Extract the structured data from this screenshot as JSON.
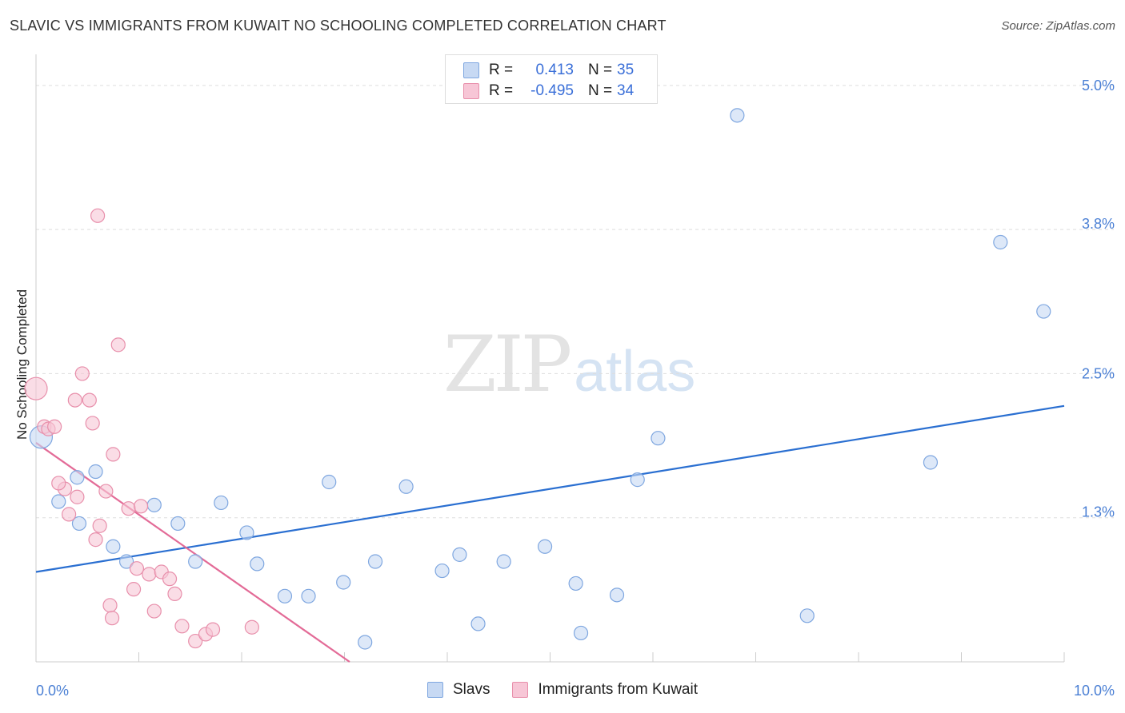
{
  "header": {
    "title": "SLAVIC VS IMMIGRANTS FROM KUWAIT NO SCHOOLING COMPLETED CORRELATION CHART",
    "source": "Source: ZipAtlas.com"
  },
  "watermark": {
    "zip": "ZIP",
    "atlas": "atlas"
  },
  "legend_top": {
    "rows": [
      {
        "r_label": "R =",
        "r_value": "0.413",
        "n_label": "N =",
        "n_value": "35"
      },
      {
        "r_label": "R =",
        "r_value": "-0.495",
        "n_label": "N =",
        "n_value": "34"
      }
    ]
  },
  "colors": {
    "blue_fill": "#c7d9f3",
    "blue_stroke": "#7fa7e0",
    "blue_line": "#2a6fd1",
    "pink_fill": "#f7c6d6",
    "pink_stroke": "#e88fab",
    "pink_line": "#e36b97",
    "tick_label": "#4a7fd4",
    "grid": "#dddddd"
  },
  "chart_data": {
    "type": "scatter",
    "title": "SLAVIC VS IMMIGRANTS FROM KUWAIT NO SCHOOLING COMPLETED CORRELATION CHART",
    "xlabel": "",
    "ylabel": "No Schooling Completed",
    "xlim": [
      0,
      10
    ],
    "ylim": [
      0,
      5.2
    ],
    "x_tick_labels": [
      {
        "value": 0,
        "label": "0.0%"
      },
      {
        "value": 10,
        "label": "10.0%"
      }
    ],
    "y_tick_labels": [
      {
        "value": 1.3,
        "label": "1.3%"
      },
      {
        "value": 2.5,
        "label": "2.5%"
      },
      {
        "value": 3.8,
        "label": "3.8%"
      },
      {
        "value": 5.0,
        "label": "5.0%"
      }
    ],
    "y_gridlines": [
      1.25,
      2.5,
      3.75,
      5.0
    ],
    "x_minor_ticks": [
      1,
      2,
      3,
      4,
      5,
      6,
      7,
      8,
      9,
      10
    ],
    "legend_position": "bottom-center",
    "series": [
      {
        "name": "Slavs",
        "color": "#7fa7e0",
        "r": 0.413,
        "n": 35,
        "trend": [
          [
            0,
            0.78
          ],
          [
            10,
            2.22
          ]
        ],
        "points": [
          [
            0.05,
            1.95
          ],
          [
            0.22,
            1.39
          ],
          [
            0.4,
            1.6
          ],
          [
            0.58,
            1.65
          ],
          [
            0.42,
            1.2
          ],
          [
            0.75,
            1.0
          ],
          [
            0.88,
            0.87
          ],
          [
            1.15,
            1.36
          ],
          [
            1.38,
            1.2
          ],
          [
            1.55,
            0.87
          ],
          [
            1.8,
            1.38
          ],
          [
            2.15,
            0.85
          ],
          [
            2.05,
            1.12
          ],
          [
            2.42,
            0.57
          ],
          [
            2.65,
            0.57
          ],
          [
            2.85,
            1.56
          ],
          [
            2.99,
            0.69
          ],
          [
            3.3,
            0.87
          ],
          [
            3.2,
            0.17
          ],
          [
            3.6,
            1.52
          ],
          [
            3.95,
            0.79
          ],
          [
            4.12,
            0.93
          ],
          [
            4.3,
            0.33
          ],
          [
            4.55,
            0.87
          ],
          [
            4.95,
            1.0
          ],
          [
            5.25,
            0.68
          ],
          [
            5.3,
            0.25
          ],
          [
            5.65,
            0.58
          ],
          [
            5.85,
            1.58
          ],
          [
            6.05,
            1.94
          ],
          [
            6.82,
            4.74
          ],
          [
            7.5,
            0.4
          ],
          [
            8.7,
            1.73
          ],
          [
            9.38,
            3.64
          ],
          [
            9.8,
            3.04
          ]
        ]
      },
      {
        "name": "Immigrants from Kuwait",
        "color": "#e88fab",
        "r": -0.495,
        "n": 34,
        "trend": [
          [
            0,
            1.9
          ],
          [
            3.05,
            0.0
          ]
        ],
        "points": [
          [
            0.0,
            2.37
          ],
          [
            0.08,
            2.04
          ],
          [
            0.12,
            2.02
          ],
          [
            0.18,
            2.04
          ],
          [
            0.28,
            1.5
          ],
          [
            0.22,
            1.55
          ],
          [
            0.32,
            1.28
          ],
          [
            0.4,
            1.43
          ],
          [
            0.38,
            2.27
          ],
          [
            0.45,
            2.5
          ],
          [
            0.52,
            2.27
          ],
          [
            0.58,
            1.06
          ],
          [
            0.55,
            2.07
          ],
          [
            0.6,
            3.87
          ],
          [
            0.62,
            1.18
          ],
          [
            0.68,
            1.48
          ],
          [
            0.72,
            0.49
          ],
          [
            0.74,
            0.38
          ],
          [
            0.75,
            1.8
          ],
          [
            0.8,
            2.75
          ],
          [
            0.9,
            1.33
          ],
          [
            0.95,
            0.63
          ],
          [
            0.98,
            0.81
          ],
          [
            1.02,
            1.35
          ],
          [
            1.1,
            0.76
          ],
          [
            1.15,
            0.44
          ],
          [
            1.22,
            0.78
          ],
          [
            1.3,
            0.72
          ],
          [
            1.35,
            0.59
          ],
          [
            1.42,
            0.31
          ],
          [
            1.55,
            0.18
          ],
          [
            1.65,
            0.24
          ],
          [
            1.72,
            0.28
          ],
          [
            2.1,
            0.3
          ]
        ]
      }
    ]
  }
}
